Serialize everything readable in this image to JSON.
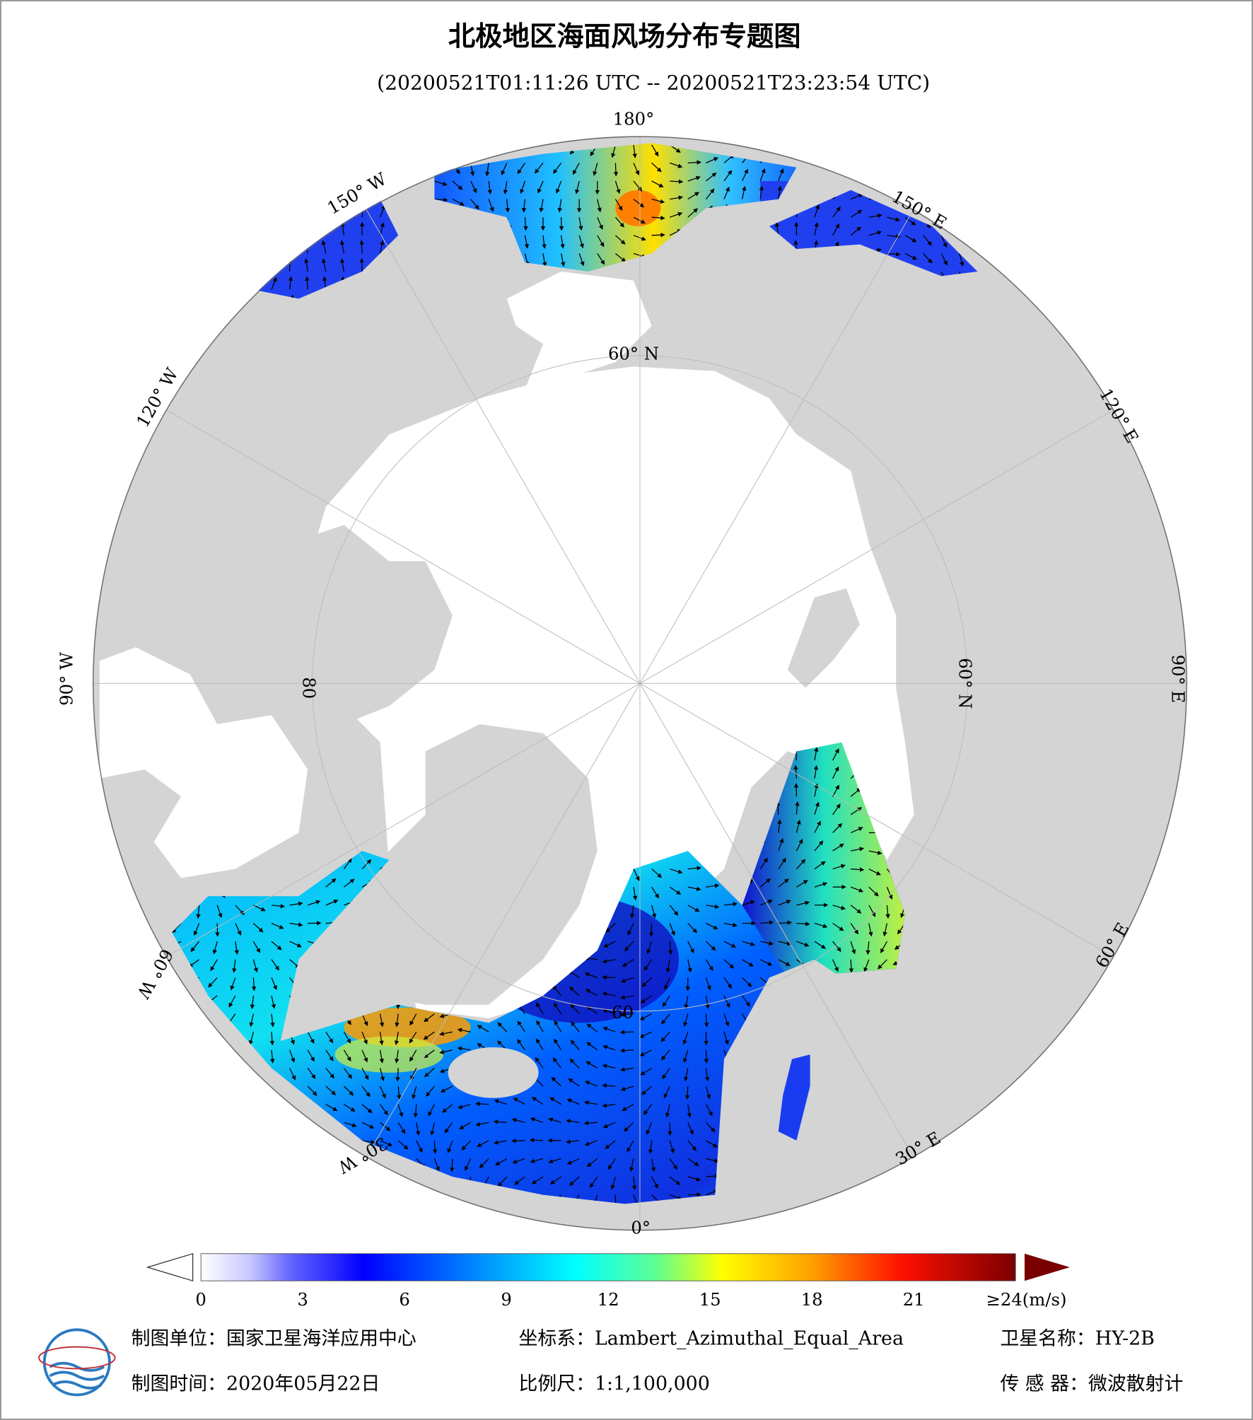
{
  "title": "北极地区海面风场分布专题图",
  "subtitle": "(20200521T01:11:26 UTC -- 20200521T23:23:54 UTC)",
  "graticule_labels": [
    "180°",
    "150° W",
    "150° E",
    "120° W",
    "120° E",
    "90° W",
    "90° E",
    "60° W",
    "60° E",
    "30° W",
    "30° E",
    "0°",
    "60° N",
    "60° N",
    "80",
    "60"
  ],
  "colorbar": {
    "ticks": [
      0,
      3,
      6,
      9,
      12,
      15,
      18,
      21,
      {
        "value": 24,
        "label": "≥24(m/s)"
      }
    ]
  },
  "footer": [
    {
      "label": "制图单位：",
      "value": "国家卫星海洋应用中心"
    },
    {
      "label": "坐标系：",
      "value": "Lambert_Azimuthal_Equal_Area"
    },
    {
      "label": "卫星名称：",
      "value": "HY-2B"
    },
    {
      "label": "制图时间：",
      "value": "2020年05月22日"
    },
    {
      "label": "比例尺：",
      "value": "1:1,100,000"
    },
    {
      "label": "传 感 器：",
      "value": "微波散射计"
    }
  ]
}
